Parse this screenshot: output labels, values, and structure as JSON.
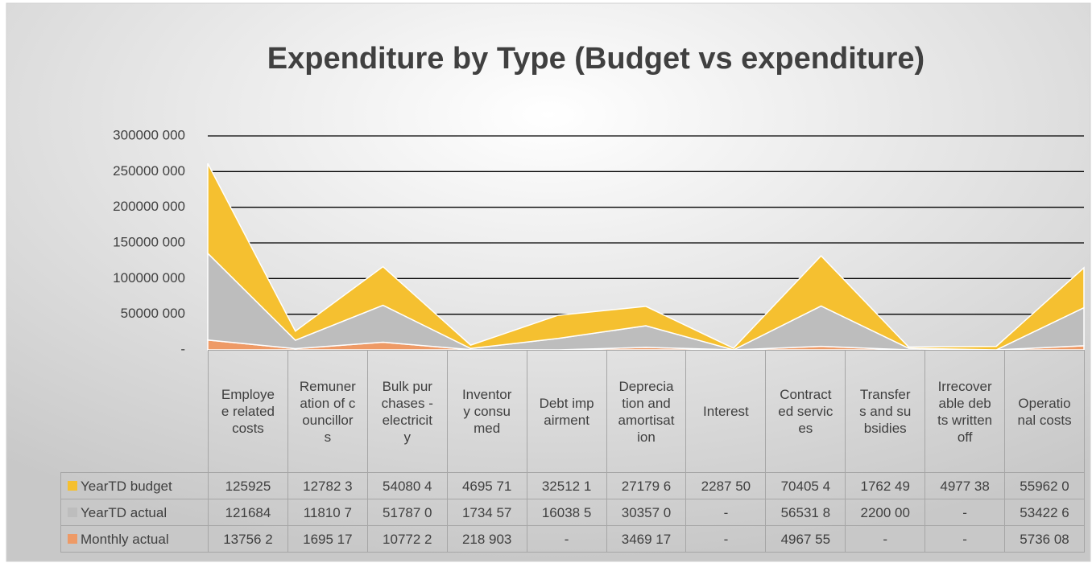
{
  "chart_data": {
    "type": "area",
    "stacked": true,
    "title": "Expenditure by Type (Budget vs expenditure)",
    "categories": [
      "Employee related costs",
      "Remuneration of councillors",
      "Bulk purchases - electricity",
      "Inventory consumed",
      "Debt impairment",
      "Depreciation and amortisation",
      "Interest",
      "Contracted services",
      "Transfers and subsidies",
      "Irrecoverable debts written off",
      "Operational costs"
    ],
    "series": [
      {
        "name": "YearTD budget",
        "color": "#f5c030",
        "values": [
          125925000,
          12782300,
          54080400,
          4695710,
          32512100,
          27179600,
          2287500,
          70405400,
          1762490,
          4977380,
          55962000
        ],
        "value_labels": [
          "125925",
          "12782 3",
          "54080 4",
          "4695 71",
          "32512 1",
          "27179 6",
          "2287 50",
          "70405 4",
          "1762 49",
          "4977 38",
          "55962 0"
        ]
      },
      {
        "name": "YearTD actual",
        "color": "#bdbdbd",
        "values": [
          121684000,
          11810700,
          51787000,
          1734570,
          16038500,
          30357000,
          0,
          56531800,
          2200000,
          0,
          53422600
        ],
        "value_labels": [
          "121684",
          "11810 7",
          "51787 0",
          "1734 57",
          "16038 5",
          "30357 0",
          "-",
          "56531 8",
          "2200 00",
          "-",
          "53422 6"
        ]
      },
      {
        "name": "Monthly actual",
        "color": "#ee9a66",
        "values": [
          13756200,
          1695170,
          10772200,
          218903,
          0,
          3469170,
          0,
          4967550,
          0,
          0,
          5736080
        ],
        "value_labels": [
          "13756 2",
          "1695 17",
          "10772 2",
          "218 903",
          "-",
          "3469 17",
          "-",
          "4967 55",
          "-",
          "-",
          "5736 08"
        ]
      }
    ],
    "ylim": [
      0,
      300000000
    ],
    "yticks": [
      {
        "value": 0,
        "label": "-"
      },
      {
        "value": 50000000,
        "label": "50000 000"
      },
      {
        "value": 100000000,
        "label": "100000 000"
      },
      {
        "value": 150000000,
        "label": "150000 000"
      },
      {
        "value": 200000000,
        "label": "200000 000"
      },
      {
        "value": 250000000,
        "label": "250000 000"
      },
      {
        "value": 300000000,
        "label": "300000 000"
      }
    ],
    "grid": true,
    "legend": "data-table"
  }
}
